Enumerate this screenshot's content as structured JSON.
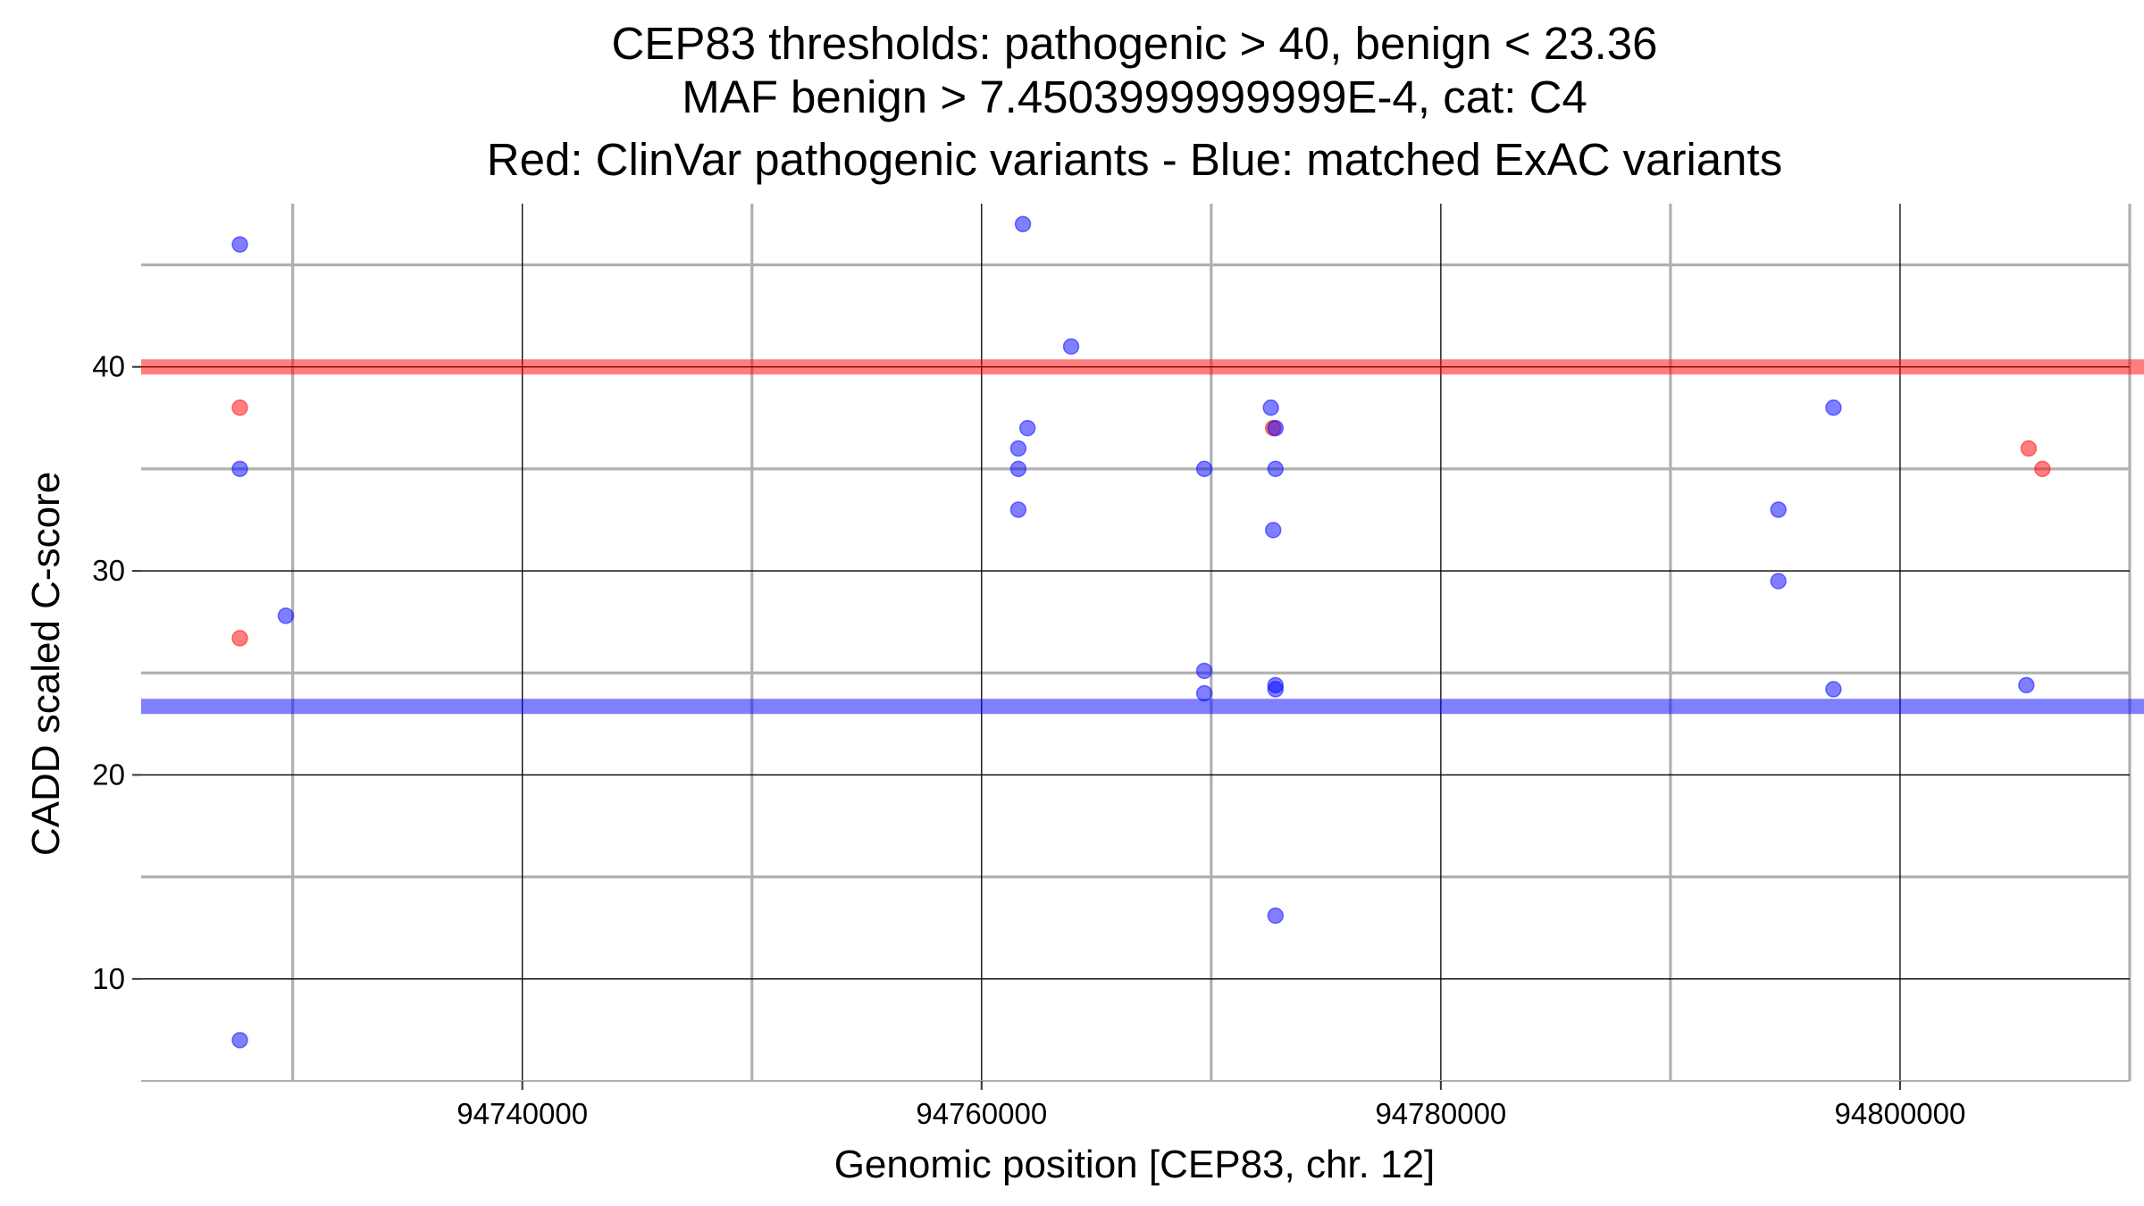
{
  "chart_data": {
    "type": "scatter",
    "title_lines": [
      "CEP83 thresholds: pathogenic > 40, benign < 23.36",
      "MAF benign > 7.4503999999999E-4, cat: C4",
      "Red: ClinVar pathogenic variants - Blue: matched ExAC variants"
    ],
    "xlabel": "Genomic position [CEP83, chr. 12]",
    "ylabel": "CADD scaled C-score",
    "xlim": [
      94723400,
      94810000
    ],
    "ylim": [
      5,
      48
    ],
    "x_ticks": [
      94740000,
      94760000,
      94780000,
      94800000
    ],
    "x_tick_labels": [
      "94740000",
      "94760000",
      "94780000",
      "94800000"
    ],
    "x_minor_ticks": [
      94730000,
      94750000,
      94770000,
      94790000,
      94810000
    ],
    "y_ticks": [
      10,
      20,
      30,
      40
    ],
    "y_tick_labels": [
      "10",
      "20",
      "30",
      "40"
    ],
    "y_minor_ticks": [
      15,
      25,
      35,
      45
    ],
    "grid": true,
    "thresholds": [
      {
        "value": 40,
        "color": "#ff0000"
      },
      {
        "value": 23.36,
        "color": "#0000ff"
      }
    ],
    "series": [
      {
        "color": "#ff0000",
        "points": [
          [
            94727700,
            38
          ],
          [
            94727700,
            26.7
          ],
          [
            94772700,
            37
          ],
          [
            94805600,
            36
          ],
          [
            94806200,
            35
          ]
        ]
      },
      {
        "color": "#0000ff",
        "points": [
          [
            94727700,
            46
          ],
          [
            94727700,
            35
          ],
          [
            94729700,
            27.8
          ],
          [
            94727700,
            7
          ],
          [
            94761800,
            47
          ],
          [
            94763900,
            41
          ],
          [
            94762000,
            37
          ],
          [
            94761600,
            36
          ],
          [
            94761600,
            35
          ],
          [
            94761600,
            33
          ],
          [
            94769700,
            35
          ],
          [
            94769700,
            25.1
          ],
          [
            94769700,
            24
          ],
          [
            94772600,
            38
          ],
          [
            94772800,
            37
          ],
          [
            94772800,
            35
          ],
          [
            94772700,
            32
          ],
          [
            94772800,
            24.4
          ],
          [
            94772800,
            24.2
          ],
          [
            94772800,
            13.1
          ],
          [
            94794700,
            33
          ],
          [
            94794700,
            29.5
          ],
          [
            94797100,
            38
          ],
          [
            94797100,
            24.2
          ],
          [
            94805500,
            24.4
          ]
        ]
      }
    ]
  }
}
